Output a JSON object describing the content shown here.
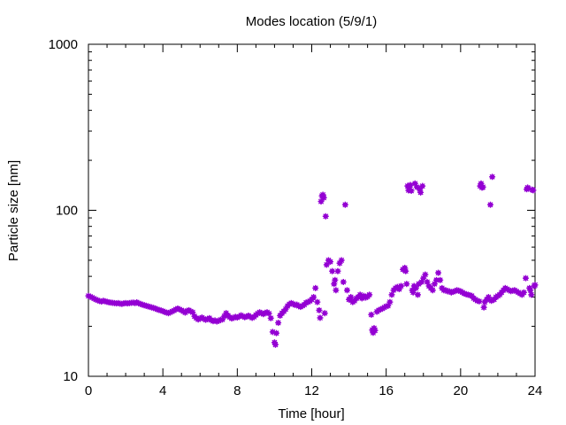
{
  "chart_data": {
    "type": "scatter",
    "title": "Modes location (5/9/1)",
    "xlabel": "Time [hour]",
    "ylabel": "Particle size [nm]",
    "xlim": [
      0,
      24
    ],
    "ylim": [
      10,
      1000
    ],
    "yscale": "log",
    "grid": false,
    "legend": "none",
    "marker_color": "#9400D3",
    "xticks": [
      {
        "value": 0,
        "label": "0"
      },
      {
        "value": 4,
        "label": "4"
      },
      {
        "value": 8,
        "label": "8"
      },
      {
        "value": 12,
        "label": "12"
      },
      {
        "value": 16,
        "label": "16"
      },
      {
        "value": 20,
        "label": "20"
      },
      {
        "value": 24,
        "label": "24"
      }
    ],
    "yticks": [
      {
        "value": 10,
        "label": "10"
      },
      {
        "value": 100,
        "label": "100"
      },
      {
        "value": 1000,
        "label": "1000"
      }
    ],
    "series": [
      {
        "points": [
          [
            0.0,
            30.5
          ],
          [
            0.1,
            30.2
          ],
          [
            0.2,
            29.8
          ],
          [
            0.3,
            29.4
          ],
          [
            0.4,
            29.0
          ],
          [
            0.5,
            28.7
          ],
          [
            0.6,
            28.4
          ],
          [
            0.7,
            28.2
          ],
          [
            0.8,
            28.5
          ],
          [
            0.9,
            28.3
          ],
          [
            1.0,
            28.1
          ],
          [
            1.1,
            27.9
          ],
          [
            1.2,
            27.8
          ],
          [
            1.3,
            27.7
          ],
          [
            1.4,
            27.6
          ],
          [
            1.5,
            27.5
          ],
          [
            1.6,
            27.6
          ],
          [
            1.7,
            27.4
          ],
          [
            1.8,
            27.3
          ],
          [
            1.9,
            27.5
          ],
          [
            2.0,
            27.6
          ],
          [
            2.1,
            27.5
          ],
          [
            2.2,
            27.6
          ],
          [
            2.3,
            27.7
          ],
          [
            2.4,
            27.8
          ],
          [
            2.5,
            27.6
          ],
          [
            2.6,
            27.9
          ],
          [
            2.7,
            27.5
          ],
          [
            2.8,
            27.3
          ],
          [
            2.9,
            27.0
          ],
          [
            3.0,
            26.8
          ],
          [
            3.1,
            26.6
          ],
          [
            3.2,
            26.4
          ],
          [
            3.3,
            26.2
          ],
          [
            3.4,
            26.0
          ],
          [
            3.5,
            25.8
          ],
          [
            3.6,
            25.6
          ],
          [
            3.7,
            25.3
          ],
          [
            3.8,
            25.1
          ],
          [
            3.9,
            24.9
          ],
          [
            4.0,
            24.7
          ],
          [
            4.1,
            24.4
          ],
          [
            4.2,
            24.2
          ],
          [
            4.3,
            24.0
          ],
          [
            4.4,
            24.3
          ],
          [
            4.5,
            24.6
          ],
          [
            4.6,
            24.9
          ],
          [
            4.7,
            25.3
          ],
          [
            4.8,
            25.6
          ],
          [
            4.9,
            25.3
          ],
          [
            5.0,
            25.0
          ],
          [
            5.1,
            24.6
          ],
          [
            5.2,
            24.2
          ],
          [
            5.3,
            24.8
          ],
          [
            5.4,
            25.0
          ],
          [
            5.5,
            24.6
          ],
          [
            5.6,
            24.3
          ],
          [
            5.7,
            23.0
          ],
          [
            5.8,
            22.4
          ],
          [
            5.9,
            22.0
          ],
          [
            6.0,
            22.3
          ],
          [
            6.1,
            22.6
          ],
          [
            6.2,
            22.2
          ],
          [
            6.3,
            21.9
          ],
          [
            6.4,
            22.1
          ],
          [
            6.5,
            22.4
          ],
          [
            6.6,
            21.8
          ],
          [
            6.7,
            21.5
          ],
          [
            6.8,
            21.7
          ],
          [
            6.9,
            21.4
          ],
          [
            7.0,
            21.6
          ],
          [
            7.1,
            21.9
          ],
          [
            7.2,
            22.0
          ],
          [
            7.3,
            23.0
          ],
          [
            7.4,
            24.0
          ],
          [
            7.5,
            23.2
          ],
          [
            7.6,
            22.7
          ],
          [
            7.7,
            22.3
          ],
          [
            7.8,
            22.5
          ],
          [
            7.9,
            22.8
          ],
          [
            8.0,
            22.6
          ],
          [
            8.1,
            22.9
          ],
          [
            8.2,
            23.3
          ],
          [
            8.3,
            23.0
          ],
          [
            8.4,
            22.7
          ],
          [
            8.5,
            22.9
          ],
          [
            8.6,
            23.2
          ],
          [
            8.7,
            22.8
          ],
          [
            8.8,
            22.5
          ],
          [
            8.9,
            22.8
          ],
          [
            9.0,
            23.4
          ],
          [
            9.1,
            23.9
          ],
          [
            9.2,
            24.3
          ],
          [
            9.3,
            24.0
          ],
          [
            9.4,
            23.7
          ],
          [
            9.5,
            24.1
          ],
          [
            9.6,
            24.3
          ],
          [
            9.7,
            23.9
          ],
          [
            9.8,
            22.4
          ],
          [
            9.9,
            18.5
          ],
          [
            10.0,
            16.0
          ],
          [
            10.05,
            15.5
          ],
          [
            10.1,
            18.2
          ],
          [
            10.2,
            21.0
          ],
          [
            10.3,
            23.2
          ],
          [
            10.4,
            24.0
          ],
          [
            10.5,
            24.6
          ],
          [
            10.6,
            25.4
          ],
          [
            10.7,
            26.5
          ],
          [
            10.8,
            27.2
          ],
          [
            10.9,
            27.6
          ],
          [
            11.0,
            27.3
          ],
          [
            11.1,
            26.9
          ],
          [
            11.2,
            27.0
          ],
          [
            11.3,
            26.5
          ],
          [
            11.4,
            26.2
          ],
          [
            11.5,
            26.6
          ],
          [
            11.6,
            27.0
          ],
          [
            11.7,
            27.8
          ],
          [
            11.8,
            28.0
          ],
          [
            11.9,
            28.4
          ],
          [
            12.0,
            29.0
          ],
          [
            12.1,
            30.0
          ],
          [
            12.2,
            34.0
          ],
          [
            12.3,
            28.0
          ],
          [
            12.4,
            25.0
          ],
          [
            12.45,
            22.5
          ],
          [
            12.5,
            113.0
          ],
          [
            12.55,
            122.0
          ],
          [
            12.6,
            124.0
          ],
          [
            12.65,
            119.0
          ],
          [
            12.7,
            24.0
          ],
          [
            12.75,
            92.0
          ],
          [
            12.8,
            47.0
          ],
          [
            12.9,
            50.0
          ],
          [
            13.0,
            49.0
          ],
          [
            13.1,
            43.0
          ],
          [
            13.2,
            36.0
          ],
          [
            13.25,
            38.0
          ],
          [
            13.3,
            33.0
          ],
          [
            13.4,
            43.0
          ],
          [
            13.5,
            48.0
          ],
          [
            13.6,
            50.0
          ],
          [
            13.7,
            37.0
          ],
          [
            13.8,
            108.0
          ],
          [
            13.9,
            33.0
          ],
          [
            14.0,
            29.0
          ],
          [
            14.1,
            30.0
          ],
          [
            14.2,
            28.0
          ],
          [
            14.3,
            28.5
          ],
          [
            14.4,
            29.5
          ],
          [
            14.5,
            30.0
          ],
          [
            14.6,
            31.0
          ],
          [
            14.7,
            29.5
          ],
          [
            14.8,
            30.5
          ],
          [
            14.9,
            29.8
          ],
          [
            15.0,
            30.2
          ],
          [
            15.1,
            31.0
          ],
          [
            15.2,
            23.5
          ],
          [
            15.25,
            19.0
          ],
          [
            15.3,
            18.3
          ],
          [
            15.35,
            19.5
          ],
          [
            15.4,
            18.9
          ],
          [
            15.5,
            24.5
          ],
          [
            15.6,
            25.0
          ],
          [
            15.7,
            25.3
          ],
          [
            15.8,
            25.6
          ],
          [
            15.9,
            26.0
          ],
          [
            16.0,
            26.4
          ],
          [
            16.1,
            26.6
          ],
          [
            16.2,
            28.0
          ],
          [
            16.3,
            31.0
          ],
          [
            16.4,
            33.0
          ],
          [
            16.5,
            34.0
          ],
          [
            16.6,
            34.5
          ],
          [
            16.7,
            33.5
          ],
          [
            16.8,
            35.0
          ],
          [
            16.9,
            44.0
          ],
          [
            17.0,
            45.0
          ],
          [
            17.05,
            43.0
          ],
          [
            17.1,
            36.0
          ],
          [
            17.15,
            140.0
          ],
          [
            17.2,
            132.0
          ],
          [
            17.25,
            138.0
          ],
          [
            17.3,
            142.0
          ],
          [
            17.35,
            131.0
          ],
          [
            17.4,
            33.0
          ],
          [
            17.45,
            32.0
          ],
          [
            17.5,
            35.0
          ],
          [
            17.55,
            145.0
          ],
          [
            17.6,
            34.0
          ],
          [
            17.65,
            138.0
          ],
          [
            17.7,
            31.0
          ],
          [
            17.75,
            36.0
          ],
          [
            17.8,
            134.0
          ],
          [
            17.85,
            128.0
          ],
          [
            17.9,
            37.0
          ],
          [
            17.95,
            140.0
          ],
          [
            18.0,
            39.0
          ],
          [
            18.1,
            41.0
          ],
          [
            18.2,
            37.0
          ],
          [
            18.3,
            35.0
          ],
          [
            18.4,
            34.0
          ],
          [
            18.5,
            33.0
          ],
          [
            18.6,
            36.0
          ],
          [
            18.7,
            38.0
          ],
          [
            18.8,
            42.0
          ],
          [
            18.9,
            38.0
          ],
          [
            19.0,
            34.0
          ],
          [
            19.1,
            33.0
          ],
          [
            19.2,
            33.0
          ],
          [
            19.3,
            32.5
          ],
          [
            19.4,
            32.5
          ],
          [
            19.5,
            32.0
          ],
          [
            19.6,
            32.3
          ],
          [
            19.7,
            32.6
          ],
          [
            19.8,
            33.0
          ],
          [
            19.9,
            32.8
          ],
          [
            20.0,
            32.5
          ],
          [
            20.1,
            32.0
          ],
          [
            20.2,
            31.5
          ],
          [
            20.3,
            31.2
          ],
          [
            20.4,
            31.0
          ],
          [
            20.5,
            30.8
          ],
          [
            20.6,
            30.5
          ],
          [
            20.7,
            29.5
          ],
          [
            20.8,
            29.0
          ],
          [
            20.9,
            28.5
          ],
          [
            21.0,
            28.3
          ],
          [
            21.05,
            140.0
          ],
          [
            21.1,
            145.0
          ],
          [
            21.15,
            137.0
          ],
          [
            21.2,
            138.0
          ],
          [
            21.25,
            26.0
          ],
          [
            21.3,
            28.0
          ],
          [
            21.4,
            29.0
          ],
          [
            21.5,
            30.0
          ],
          [
            21.6,
            108.0
          ],
          [
            21.65,
            28.5
          ],
          [
            21.7,
            159.0
          ],
          [
            21.8,
            29.0
          ],
          [
            21.9,
            30.0
          ],
          [
            22.0,
            30.5
          ],
          [
            22.1,
            31.0
          ],
          [
            22.2,
            32.0
          ],
          [
            22.3,
            33.0
          ],
          [
            22.4,
            34.0
          ],
          [
            22.5,
            33.5
          ],
          [
            22.6,
            33.0
          ],
          [
            22.7,
            32.6
          ],
          [
            22.8,
            32.8
          ],
          [
            22.9,
            33.0
          ],
          [
            23.0,
            32.5
          ],
          [
            23.1,
            32.0
          ],
          [
            23.2,
            31.5
          ],
          [
            23.3,
            31.0
          ],
          [
            23.4,
            32.0
          ],
          [
            23.5,
            39.0
          ],
          [
            23.55,
            134.0
          ],
          [
            23.6,
            137.0
          ],
          [
            23.65,
            135.0
          ],
          [
            23.7,
            34.0
          ],
          [
            23.75,
            33.0
          ],
          [
            23.8,
            31.0
          ],
          [
            23.85,
            133.0
          ],
          [
            23.9,
            132.0
          ],
          [
            23.95,
            35.0
          ],
          [
            24.0,
            35.5
          ]
        ]
      }
    ]
  }
}
